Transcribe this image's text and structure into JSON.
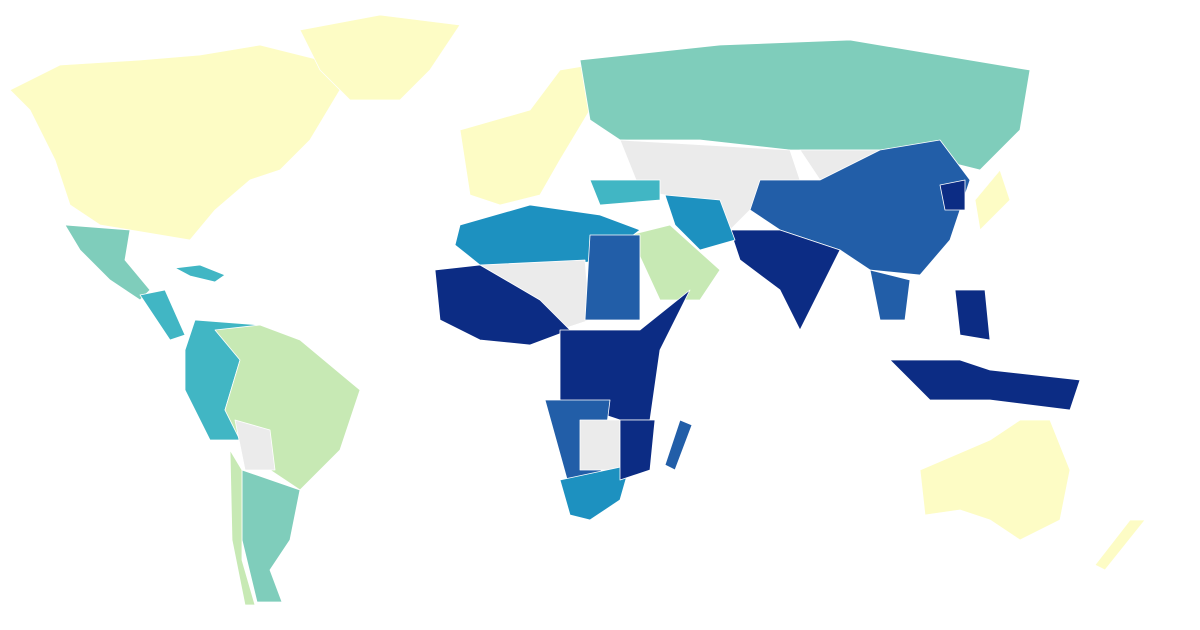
{
  "map": {
    "background": "#ffffff",
    "border": "#ffffff",
    "colors": [
      "#fdfcc5",
      "#c7e9b4",
      "#7fcdbb",
      "#41b6c4",
      "#1d91c0",
      "#225ea8",
      "#0c2c84",
      "#ebebeb"
    ]
  }
}
